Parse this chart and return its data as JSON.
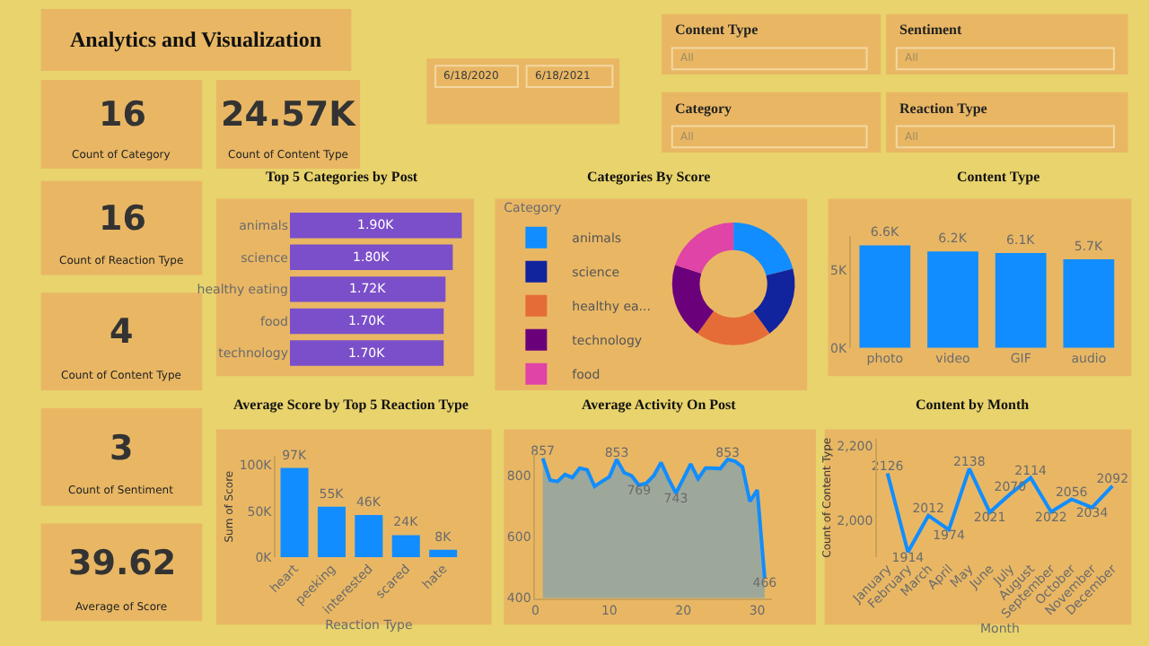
{
  "chart_data": [
    {
      "type": "other",
      "title": "Analytics and Visualization"
    },
    {
      "type": "other",
      "annotations": [
        "16",
        "Count of Category",
        "24.57K",
        "Count of Content Type",
        "16",
        "Count of Reaction Type",
        "4",
        "Count of Content Type",
        "3",
        "Count of Sentiment",
        "39.62",
        "Average of Score"
      ]
    },
    {
      "type": "other",
      "annotations": [
        "6/18/2020",
        "6/18/2021",
        "Content Type",
        "All",
        "Sentiment",
        "All",
        "Category",
        "All",
        "Reaction Type",
        "All"
      ]
    },
    {
      "type": "bar",
      "orientation": "horizontal",
      "title": "Top 5 Categories by Post",
      "categories": [
        "animals",
        "science",
        "healthy eating",
        "food",
        "technology"
      ],
      "values": [
        1.9,
        1.8,
        1.72,
        1.7,
        1.7
      ],
      "value_labels": [
        "1.90K",
        "1.80K",
        "1.72K",
        "1.70K",
        "1.70K"
      ],
      "color": "#7b4fc9"
    },
    {
      "type": "donut",
      "title": "Categories By Score",
      "legend_title": "Category",
      "legend": "left",
      "categories": [
        "animals",
        "science",
        "healthy ea...",
        "technology",
        "food"
      ],
      "values": [
        21,
        19,
        20,
        20,
        20
      ],
      "colors": [
        "#118dff",
        "#12239e",
        "#e66c37",
        "#6b007b",
        "#e044a7"
      ]
    },
    {
      "type": "bar",
      "title": "Content Type",
      "categories": [
        "photo",
        "video",
        "GIF",
        "audio"
      ],
      "values": [
        6.6,
        6.2,
        6.1,
        5.7
      ],
      "value_labels": [
        "6.6K",
        "6.2K",
        "6.1K",
        "5.7K"
      ],
      "color": "#118dff",
      "ylim": [
        0,
        7.2
      ],
      "yticks": [
        {
          "value": 0,
          "label": "0K"
        },
        {
          "value": 5,
          "label": "5K"
        }
      ]
    },
    {
      "type": "bar",
      "title": "Average Score by Top 5 Reaction Type",
      "categories": [
        "heart",
        "peeking",
        "interested",
        "scared",
        "hate"
      ],
      "values": [
        97,
        55,
        46,
        24,
        8
      ],
      "value_labels": [
        "97K",
        "55K",
        "46K",
        "24K",
        "8K"
      ],
      "color": "#118dff",
      "ylim": [
        0,
        110
      ],
      "yticks": [
        {
          "value": 0,
          "label": "0K"
        },
        {
          "value": 50,
          "label": "50K"
        },
        {
          "value": 100,
          "label": "100K"
        }
      ],
      "xlabel": "Reaction Type",
      "ylabel": "Sum of Score"
    },
    {
      "type": "area",
      "title": "Average Activity On Post",
      "x": [
        1,
        2,
        3,
        4,
        5,
        6,
        7,
        8,
        9,
        10,
        11,
        12,
        13,
        14,
        15,
        16,
        17,
        18,
        19,
        20,
        21,
        22,
        23,
        24,
        25,
        26,
        27,
        28,
        29,
        30,
        31
      ],
      "xlim": [
        0,
        32
      ],
      "xticks": [
        0,
        10,
        20,
        30
      ],
      "ylim": [
        400,
        870
      ],
      "yticks": [
        400,
        600,
        800
      ],
      "series": [
        {
          "color": "#118dff",
          "values": [
            857,
            785,
            781,
            804,
            794,
            825,
            819,
            765,
            781,
            796,
            853,
            810,
            800,
            769,
            775,
            800,
            843,
            790,
            743,
            790,
            838,
            790,
            825,
            825,
            823,
            853,
            847,
            829,
            716,
            753,
            466
          ],
          "value_labels": [
            "857",
            null,
            null,
            null,
            null,
            null,
            null,
            null,
            null,
            null,
            "853",
            null,
            null,
            "769",
            null,
            null,
            null,
            null,
            "743",
            null,
            null,
            null,
            null,
            null,
            null,
            "853",
            null,
            null,
            null,
            null,
            "466"
          ]
        }
      ]
    },
    {
      "type": "line",
      "title": "Content by Month",
      "categories": [
        "January",
        "February",
        "March",
        "April",
        "May",
        "June",
        "July",
        "August",
        "September",
        "October",
        "November",
        "December"
      ],
      "values": [
        2126,
        1914,
        2012,
        1974,
        2138,
        2021,
        2070,
        2114,
        2022,
        2056,
        2034,
        2092
      ],
      "color": "#118dff",
      "data_labels": true,
      "ylim": [
        1900,
        2220
      ],
      "yticks": [
        {
          "value": 2000,
          "label": "2,000"
        },
        {
          "value": 2200,
          "label": "2,200"
        }
      ],
      "xlabel": "Month",
      "ylabel": "Count of Content Type"
    }
  ]
}
